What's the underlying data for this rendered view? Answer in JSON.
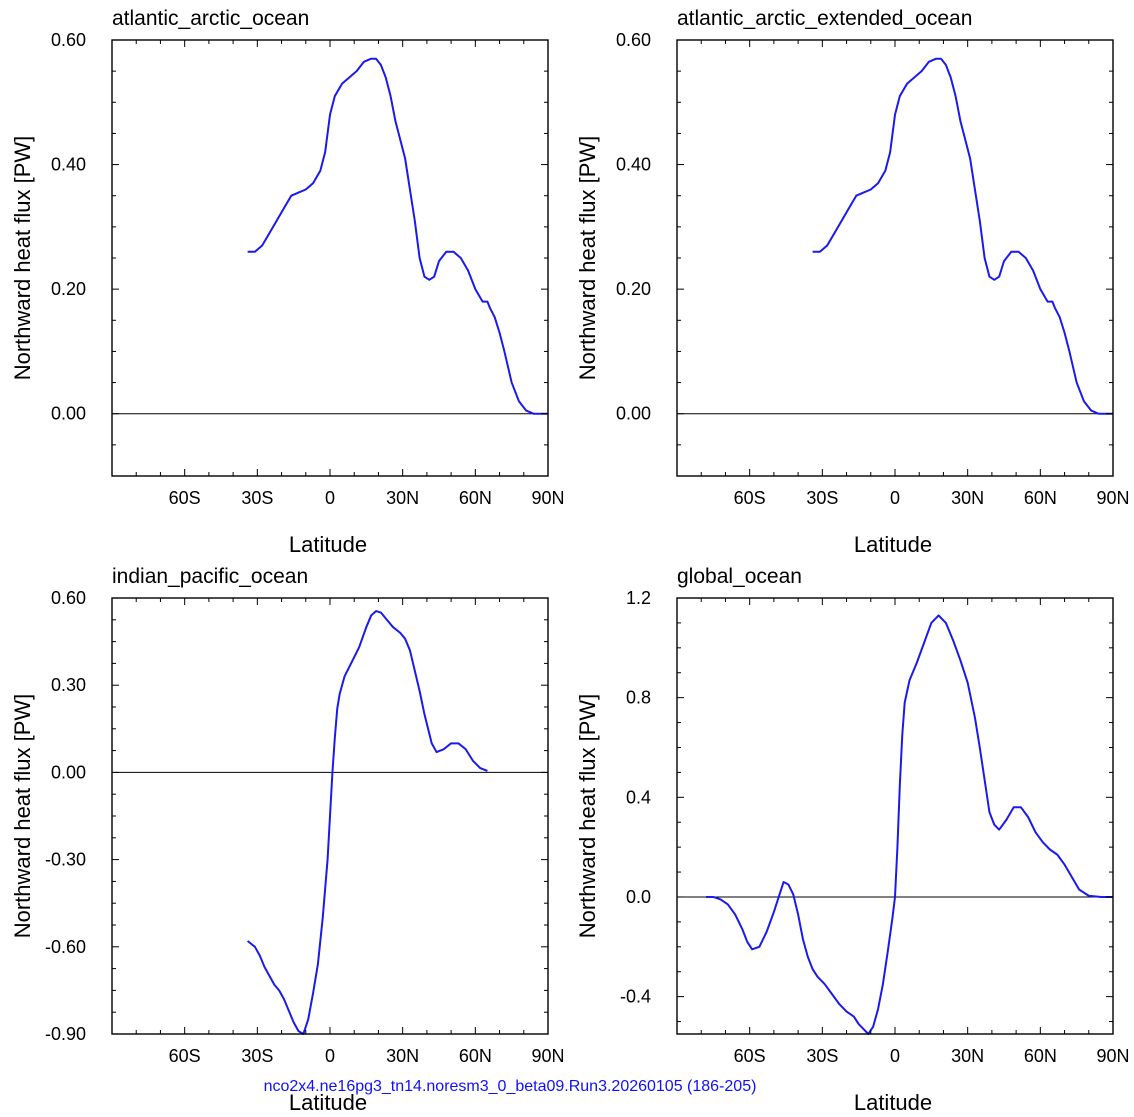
{
  "footer": "nco2x4.ne16pg3_tn14.noresm3_0_beta09.Run3.20260105 (186-205)",
  "line_color": "#1a1aee",
  "chart_data": [
    {
      "type": "line",
      "title": "atlantic_arctic_ocean",
      "xlabel": "Latitude",
      "ylabel": "Northward heat flux [PW]",
      "xlim": [
        -90,
        90
      ],
      "ylim": [
        -0.1,
        0.6
      ],
      "xticks": [
        {
          "v": -60,
          "label": "60S"
        },
        {
          "v": -30,
          "label": "30S"
        },
        {
          "v": 0,
          "label": "0"
        },
        {
          "v": 30,
          "label": "30N"
        },
        {
          "v": 60,
          "label": "60N"
        },
        {
          "v": 90,
          "label": "90N"
        }
      ],
      "yticks": [
        {
          "v": 0.6,
          "label": "0.60"
        },
        {
          "v": 0.4,
          "label": "0.40"
        },
        {
          "v": 0.2,
          "label": "0.20"
        },
        {
          "v": 0.0,
          "label": "0.00"
        }
      ],
      "zero_line": true,
      "series": [
        {
          "x": [
            -34,
            -31,
            -28,
            -25,
            -22,
            -19,
            -16,
            -13,
            -10,
            -7,
            -4,
            -2,
            -1,
            0,
            2,
            5,
            8,
            11,
            14,
            17,
            19,
            21,
            23,
            25,
            27,
            29,
            31,
            33,
            35,
            37,
            39,
            41,
            43,
            45,
            48,
            51,
            54,
            57,
            60,
            63,
            65,
            66,
            68,
            70,
            72,
            75,
            78,
            81,
            84,
            87,
            90
          ],
          "y": [
            0.26,
            0.26,
            0.27,
            0.29,
            0.31,
            0.33,
            0.35,
            0.355,
            0.36,
            0.37,
            0.39,
            0.42,
            0.45,
            0.48,
            0.51,
            0.53,
            0.54,
            0.55,
            0.565,
            0.57,
            0.57,
            0.56,
            0.54,
            0.51,
            0.47,
            0.44,
            0.41,
            0.36,
            0.31,
            0.25,
            0.22,
            0.215,
            0.22,
            0.245,
            0.26,
            0.26,
            0.25,
            0.23,
            0.2,
            0.18,
            0.18,
            0.17,
            0.155,
            0.13,
            0.1,
            0.05,
            0.02,
            0.005,
            0.0,
            0.0,
            0.0
          ]
        }
      ]
    },
    {
      "type": "line",
      "title": "atlantic_arctic_extended_ocean",
      "xlabel": "Latitude",
      "ylabel": "Northward heat flux [PW]",
      "xlim": [
        -90,
        90
      ],
      "ylim": [
        -0.1,
        0.6
      ],
      "xticks": [
        {
          "v": -60,
          "label": "60S"
        },
        {
          "v": -30,
          "label": "30S"
        },
        {
          "v": 0,
          "label": "0"
        },
        {
          "v": 30,
          "label": "30N"
        },
        {
          "v": 60,
          "label": "60N"
        },
        {
          "v": 90,
          "label": "90N"
        }
      ],
      "yticks": [
        {
          "v": 0.6,
          "label": "0.60"
        },
        {
          "v": 0.4,
          "label": "0.40"
        },
        {
          "v": 0.2,
          "label": "0.20"
        },
        {
          "v": 0.0,
          "label": "0.00"
        }
      ],
      "zero_line": true,
      "series": [
        {
          "x": [
            -34,
            -31,
            -28,
            -25,
            -22,
            -19,
            -16,
            -13,
            -10,
            -7,
            -4,
            -2,
            -1,
            0,
            2,
            5,
            8,
            11,
            14,
            17,
            19,
            21,
            23,
            25,
            27,
            29,
            31,
            33,
            35,
            37,
            39,
            41,
            43,
            45,
            48,
            51,
            54,
            57,
            60,
            63,
            65,
            66,
            68,
            70,
            72,
            75,
            78,
            81,
            84,
            87,
            90
          ],
          "y": [
            0.26,
            0.26,
            0.27,
            0.29,
            0.31,
            0.33,
            0.35,
            0.355,
            0.36,
            0.37,
            0.39,
            0.42,
            0.45,
            0.48,
            0.51,
            0.53,
            0.54,
            0.55,
            0.565,
            0.57,
            0.57,
            0.56,
            0.54,
            0.51,
            0.47,
            0.44,
            0.41,
            0.36,
            0.31,
            0.25,
            0.22,
            0.215,
            0.22,
            0.245,
            0.26,
            0.26,
            0.25,
            0.23,
            0.2,
            0.18,
            0.18,
            0.17,
            0.155,
            0.13,
            0.1,
            0.05,
            0.02,
            0.005,
            0.0,
            0.0,
            0.0
          ]
        }
      ]
    },
    {
      "type": "line",
      "title": "indian_pacific_ocean",
      "xlabel": "Latitude",
      "ylabel": "Northward heat flux [PW]",
      "xlim": [
        -90,
        90
      ],
      "ylim": [
        -0.9,
        0.6
      ],
      "xticks": [
        {
          "v": -60,
          "label": "60S"
        },
        {
          "v": -30,
          "label": "30S"
        },
        {
          "v": 0,
          "label": "0"
        },
        {
          "v": 30,
          "label": "30N"
        },
        {
          "v": 60,
          "label": "60N"
        },
        {
          "v": 90,
          "label": "90N"
        }
      ],
      "yticks": [
        {
          "v": 0.6,
          "label": "0.60"
        },
        {
          "v": 0.3,
          "label": "0.30"
        },
        {
          "v": 0.0,
          "label": "0.00"
        },
        {
          "v": -0.3,
          "label": "-0.30"
        },
        {
          "v": -0.6,
          "label": "-0.60"
        },
        {
          "v": -0.9,
          "label": "-0.90"
        }
      ],
      "zero_line": true,
      "series": [
        {
          "x": [
            -34,
            -31,
            -29,
            -27,
            -25,
            -23,
            -21,
            -19,
            -17,
            -15,
            -13,
            -11,
            -9,
            -7,
            -5,
            -3,
            -1,
            0,
            1,
            2,
            3,
            4,
            6,
            9,
            12,
            15,
            17,
            19,
            21,
            23,
            26,
            29,
            31,
            33,
            35,
            37,
            39,
            42,
            44,
            47,
            50,
            53,
            56,
            59,
            62,
            65
          ],
          "y": [
            -0.58,
            -0.6,
            -0.63,
            -0.67,
            -0.7,
            -0.73,
            -0.75,
            -0.78,
            -0.82,
            -0.86,
            -0.89,
            -0.9,
            -0.85,
            -0.76,
            -0.66,
            -0.5,
            -0.3,
            -0.15,
            0.0,
            0.12,
            0.22,
            0.27,
            0.33,
            0.38,
            0.43,
            0.5,
            0.54,
            0.555,
            0.55,
            0.53,
            0.5,
            0.48,
            0.46,
            0.42,
            0.35,
            0.28,
            0.2,
            0.1,
            0.07,
            0.08,
            0.1,
            0.1,
            0.08,
            0.04,
            0.015,
            0.005
          ]
        }
      ]
    },
    {
      "type": "line",
      "title": "global_ocean",
      "xlabel": "Latitude",
      "ylabel": "Northward heat flux [PW]",
      "xlim": [
        -90,
        90
      ],
      "ylim": [
        -0.55,
        1.2
      ],
      "xticks": [
        {
          "v": -60,
          "label": "60S"
        },
        {
          "v": -30,
          "label": "30S"
        },
        {
          "v": 0,
          "label": "0"
        },
        {
          "v": 30,
          "label": "30N"
        },
        {
          "v": 60,
          "label": "60N"
        },
        {
          "v": 90,
          "label": "90N"
        }
      ],
      "yticks": [
        {
          "v": 1.2,
          "label": "1.2"
        },
        {
          "v": 0.8,
          "label": "0.8"
        },
        {
          "v": 0.4,
          "label": "0.4"
        },
        {
          "v": 0.0,
          "label": "0.0"
        },
        {
          "v": -0.4,
          "label": "-0.4"
        }
      ],
      "zero_line": true,
      "series": [
        {
          "x": [
            -78,
            -75,
            -72,
            -69,
            -66,
            -63,
            -61,
            -59,
            -56,
            -53,
            -50,
            -48,
            -46,
            -44,
            -42,
            -40,
            -38,
            -36,
            -34,
            -32,
            -29,
            -26,
            -23,
            -20,
            -17,
            -15,
            -13,
            -11,
            -9,
            -7,
            -5,
            -3,
            -1,
            0,
            1,
            2,
            3,
            4,
            6,
            9,
            12,
            15,
            18,
            21,
            24,
            27,
            30,
            33,
            35,
            37,
            39,
            41,
            43,
            46,
            49,
            52,
            55,
            58,
            61,
            64,
            67,
            70,
            73,
            76,
            80,
            85,
            90
          ],
          "y": [
            0.0,
            0.0,
            -0.01,
            -0.03,
            -0.07,
            -0.13,
            -0.18,
            -0.21,
            -0.2,
            -0.14,
            -0.06,
            0.0,
            0.06,
            0.05,
            0.01,
            -0.07,
            -0.17,
            -0.24,
            -0.29,
            -0.32,
            -0.35,
            -0.39,
            -0.43,
            -0.46,
            -0.48,
            -0.51,
            -0.53,
            -0.55,
            -0.52,
            -0.45,
            -0.35,
            -0.22,
            -0.08,
            0.0,
            0.2,
            0.45,
            0.65,
            0.78,
            0.87,
            0.94,
            1.02,
            1.1,
            1.13,
            1.1,
            1.03,
            0.95,
            0.86,
            0.72,
            0.6,
            0.47,
            0.34,
            0.29,
            0.27,
            0.31,
            0.36,
            0.36,
            0.32,
            0.26,
            0.22,
            0.19,
            0.17,
            0.13,
            0.08,
            0.03,
            0.005,
            0.0,
            0.0
          ]
        }
      ]
    }
  ]
}
